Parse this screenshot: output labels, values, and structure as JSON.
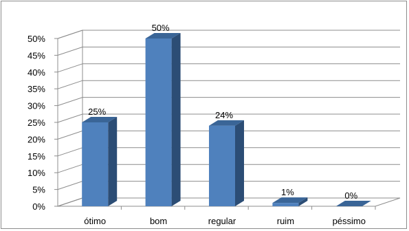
{
  "chart_data": {
    "type": "bar",
    "categories": [
      "ótimo",
      "bom",
      "regular",
      "ruim",
      "péssimo"
    ],
    "values": [
      25,
      50,
      24,
      1,
      0
    ],
    "data_labels": [
      "25%",
      "50%",
      "24%",
      "1%",
      "0%"
    ],
    "ylim": [
      0,
      50
    ],
    "yticks": [
      "0%",
      "5%",
      "10%",
      "15%",
      "20%",
      "25%",
      "30%",
      "35%",
      "40%",
      "45%",
      "50%"
    ],
    "grid": true,
    "style": "3d-column",
    "colors": {
      "bar_front": "#4f81bd",
      "bar_side": "#2c4d75",
      "bar_top": "#3a6597",
      "grid": "#8c8c8c",
      "text": "#000000"
    }
  }
}
